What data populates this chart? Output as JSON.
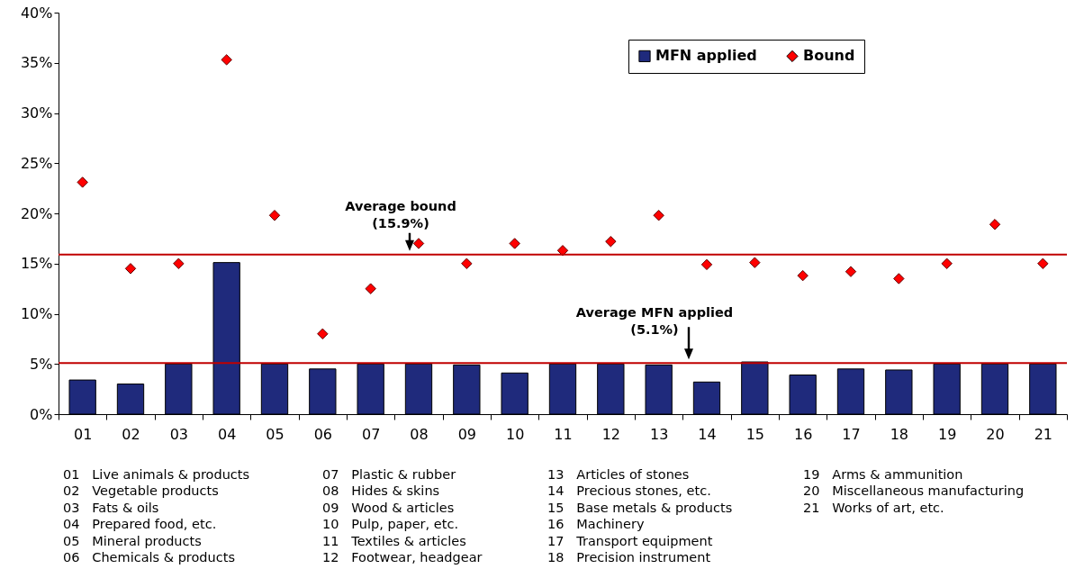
{
  "chart_data": {
    "type": "bar",
    "categories": [
      "01",
      "02",
      "03",
      "04",
      "05",
      "06",
      "07",
      "08",
      "09",
      "10",
      "11",
      "12",
      "13",
      "14",
      "15",
      "16",
      "17",
      "18",
      "19",
      "20",
      "21"
    ],
    "series": [
      {
        "name": "MFN applied",
        "type": "bar",
        "color": "#1f2a7c",
        "values": [
          3.4,
          3.0,
          5.0,
          15.1,
          5.0,
          4.5,
          5.0,
          5.0,
          4.9,
          4.1,
          5.0,
          5.0,
          4.9,
          3.2,
          5.2,
          3.9,
          4.5,
          4.4,
          5.0,
          5.0,
          5.0
        ]
      },
      {
        "name": "Bound",
        "type": "scatter",
        "marker": "diamond",
        "color": "#ff0000",
        "values": [
          23.1,
          14.5,
          15.0,
          35.3,
          19.8,
          8.0,
          12.5,
          17.0,
          15.0,
          17.0,
          16.3,
          17.2,
          19.8,
          14.9,
          15.1,
          13.8,
          14.2,
          13.5,
          15.0,
          18.9,
          15.0
        ]
      }
    ],
    "ylim": [
      0,
      40
    ],
    "yticks": [
      {
        "value": 0,
        "label": "0%"
      },
      {
        "value": 5,
        "label": "5%"
      },
      {
        "value": 10,
        "label": "10%"
      },
      {
        "value": 15,
        "label": "15%"
      },
      {
        "value": 20,
        "label": "20%"
      },
      {
        "value": 25,
        "label": "25%"
      },
      {
        "value": 30,
        "label": "30%"
      },
      {
        "value": 35,
        "label": "35%"
      },
      {
        "value": 40,
        "label": "40%"
      }
    ],
    "grid": false,
    "legend": "top right",
    "ref_lines": [
      {
        "axis": "y",
        "value": 15.9,
        "label": "Average bound\n(15.9%)",
        "color": "#c00000"
      },
      {
        "axis": "y",
        "value": 5.1,
        "label": "Average MFN applied\n(5.1%)",
        "color": "#c00000"
      }
    ],
    "annotations": [
      "01   Live animals & products",
      "02   Vegetable products",
      "03   Fats & oils",
      "04   Prepared food, etc.",
      "05   Mineral products",
      "06   Chemicals & products",
      "07   Plastic & rubber",
      "08   Hides & skins",
      "09   Wood & articles",
      "10   Pulp, paper, etc.",
      "11   Textiles & articles",
      "12   Footwear, headgear",
      "13   Articles of stones",
      "14   Precious stones, etc.",
      "15   Base metals & products",
      "16   Machinery",
      "17   Transport equipment",
      "18   Precision instrument",
      "19   Arms & ammunition",
      "20   Miscellaneous manufacturing",
      "21   Works of art, etc."
    ]
  }
}
